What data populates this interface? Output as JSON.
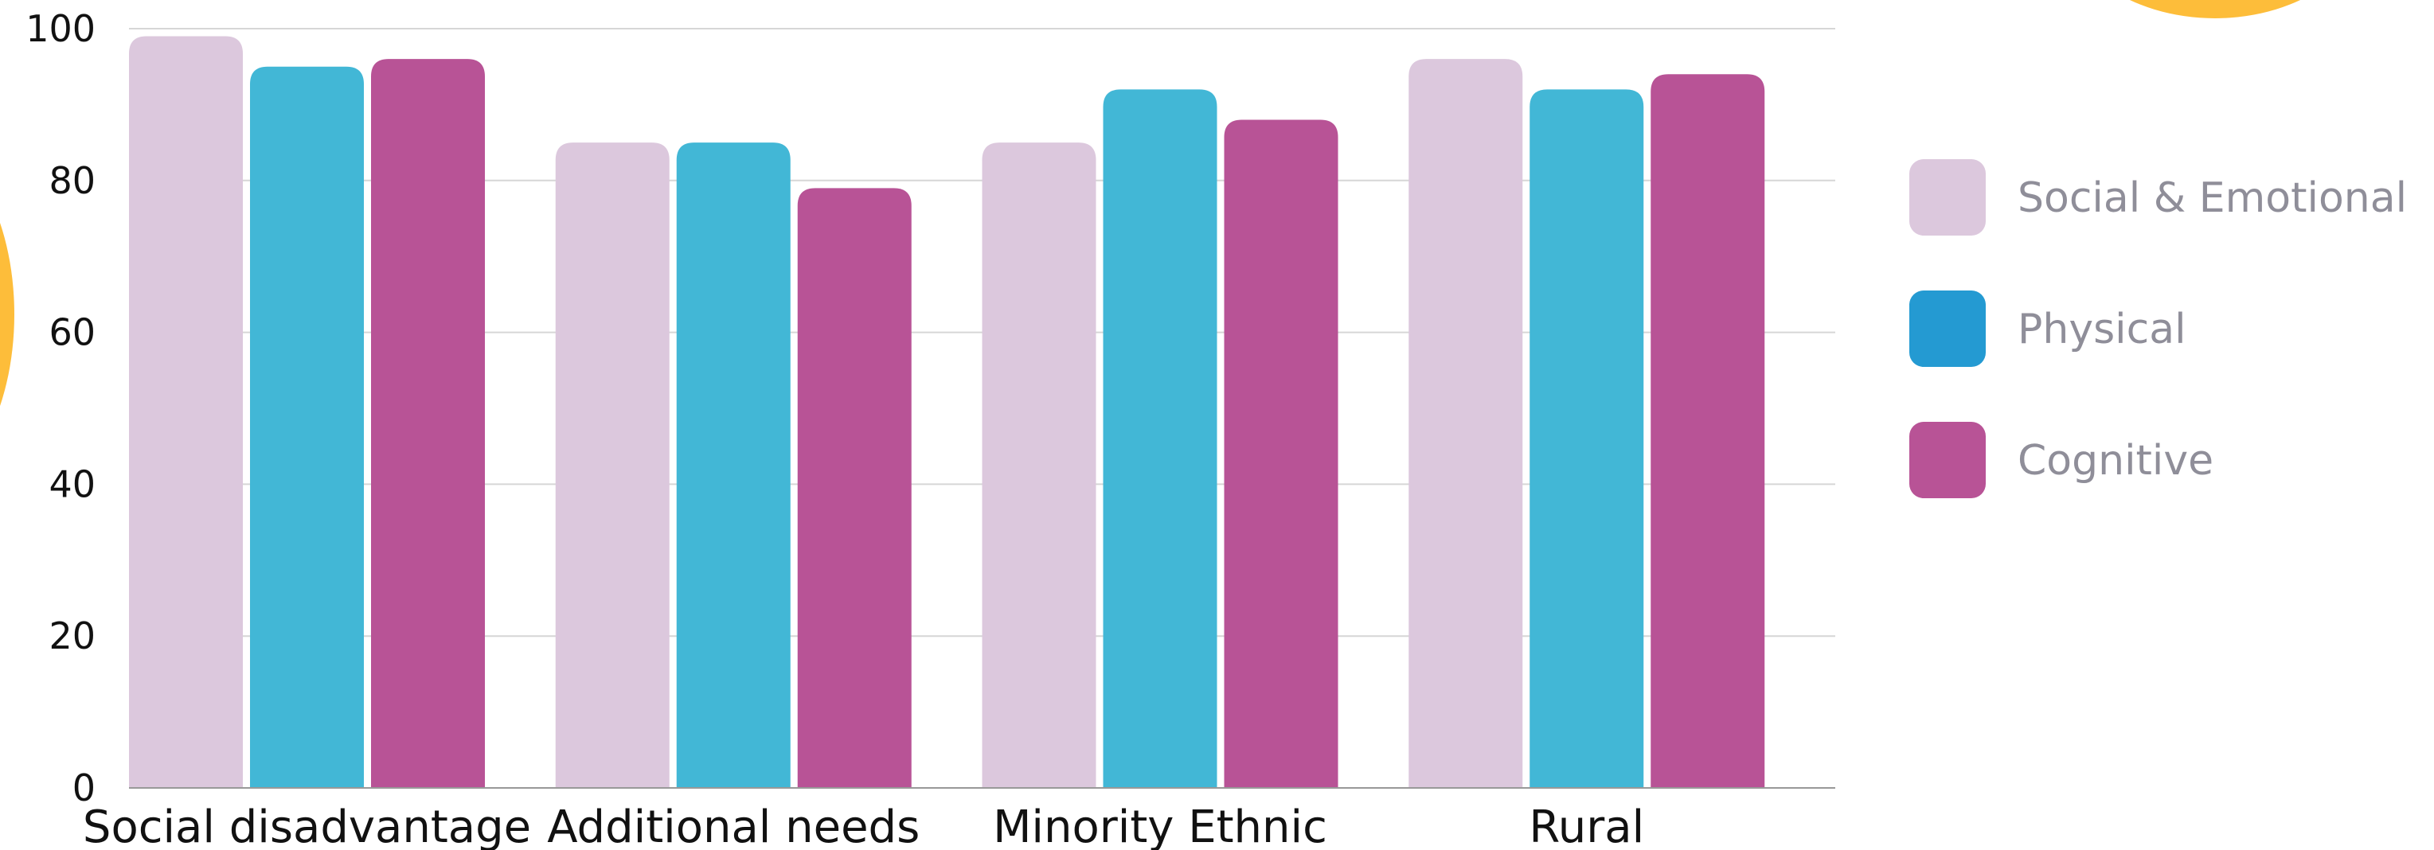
{
  "chart_data": {
    "type": "bar",
    "title": "",
    "xlabel": "",
    "ylabel": "",
    "categories": [
      "Social disadvantage",
      "Additional needs",
      "Minority Ethnic",
      "Rural"
    ],
    "series": [
      {
        "name": "Social & Emotional",
        "values": [
          99,
          85,
          85,
          96
        ],
        "color": "#dcc8dd",
        "legend_color": "#dcc8dd"
      },
      {
        "name": "Physical",
        "values": [
          95,
          85,
          92,
          92
        ],
        "color": "#42b7d6",
        "legend_color": "#249ad2"
      },
      {
        "name": "Cognitive",
        "values": [
          96,
          79,
          88,
          94
        ],
        "color": "#b85396",
        "legend_color": "#b85396"
      }
    ],
    "ylim": [
      0,
      100
    ],
    "yticks": [
      "0",
      "20",
      "40",
      "60",
      "80",
      "100"
    ],
    "grid": true,
    "legend_placement": "right"
  },
  "colors": {
    "decoration_accent": "#fdbd3a",
    "gridline": "#d6d6d6",
    "axis_line": "#999999"
  }
}
